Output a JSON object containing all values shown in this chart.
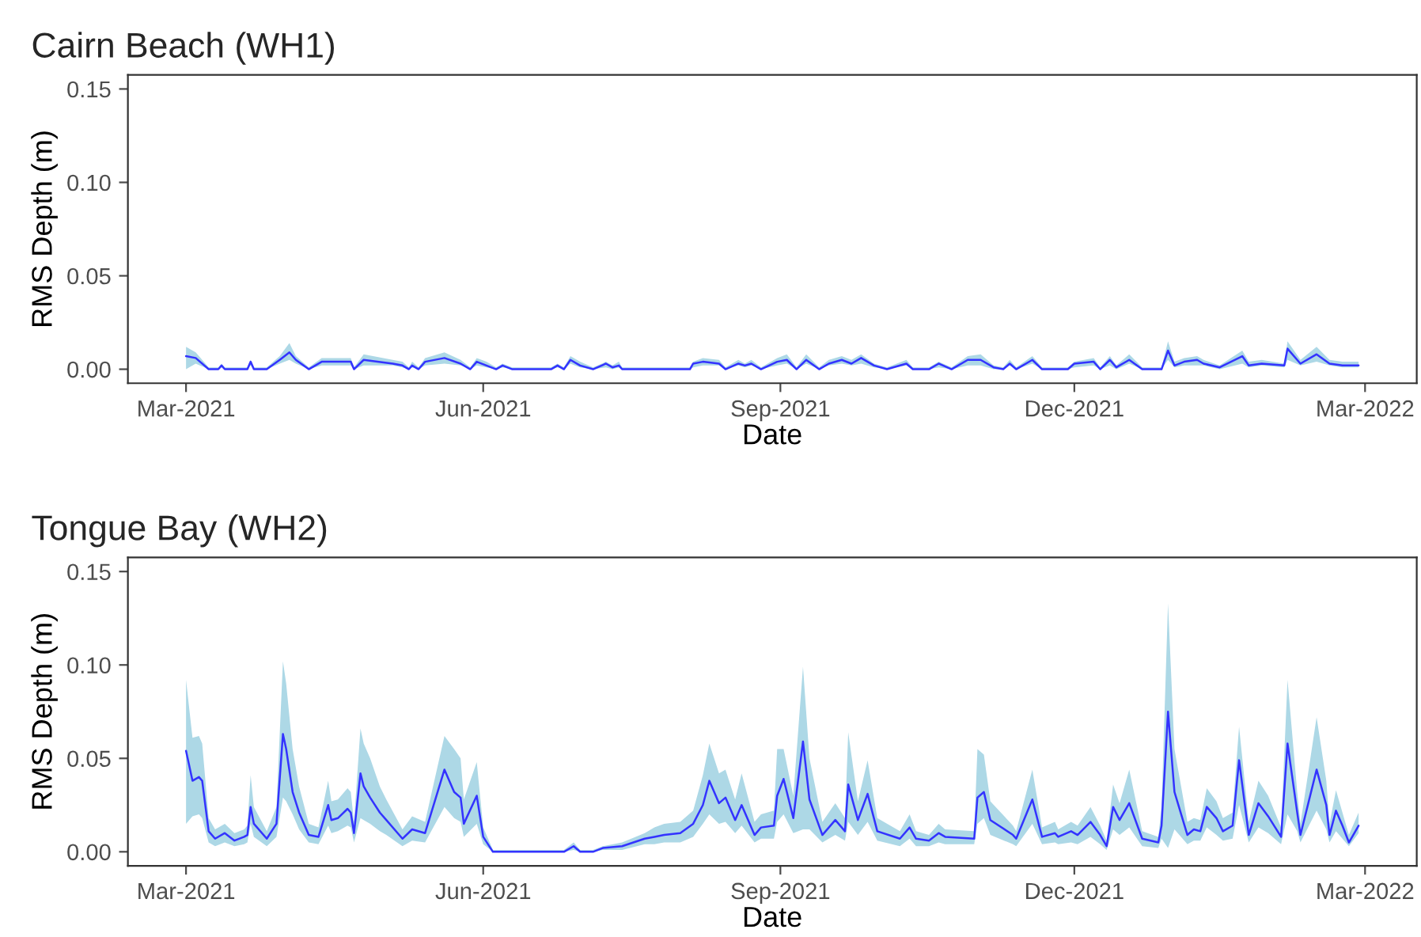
{
  "chart_data": [
    {
      "type": "line",
      "title": "Cairn Beach (WH1)",
      "xlabel": "Date",
      "ylabel": "RMS Depth (m)",
      "xlim": [
        "2021-02-11",
        "2022-03-17"
      ],
      "ylim": [
        -0.0075,
        0.1575
      ],
      "xticks": [
        {
          "value": "2021-03-01",
          "label": "Mar-2021"
        },
        {
          "value": "2021-06-01",
          "label": "Jun-2021"
        },
        {
          "value": "2021-09-01",
          "label": "Sep-2021"
        },
        {
          "value": "2021-12-01",
          "label": "Dec-2021"
        },
        {
          "value": "2022-03-01",
          "label": "Mar-2022"
        }
      ],
      "yticks": [
        {
          "value": 0,
          "label": "0.00"
        },
        {
          "value": 0.05,
          "label": "0.05"
        },
        {
          "value": 0.1,
          "label": "0.10"
        },
        {
          "value": 0.15,
          "label": "0.15"
        }
      ],
      "grid": false,
      "legend": false,
      "series": [
        {
          "color": "#3333ff",
          "x": [
            "2021-03-01",
            "2021-03-04",
            "2021-03-08",
            "2021-03-11",
            "2021-03-12",
            "2021-03-13",
            "2021-03-20",
            "2021-03-21",
            "2021-03-22",
            "2021-03-26",
            "2021-03-30",
            "2021-04-02",
            "2021-04-04",
            "2021-04-08",
            "2021-04-12",
            "2021-04-21",
            "2021-04-22",
            "2021-04-25",
            "2021-05-04",
            "2021-05-07",
            "2021-05-09",
            "2021-05-10",
            "2021-05-12",
            "2021-05-14",
            "2021-05-20",
            "2021-05-25",
            "2021-05-28",
            "2021-05-30",
            "2021-06-02",
            "2021-06-05",
            "2021-06-07",
            "2021-06-10",
            "2021-06-22",
            "2021-06-24",
            "2021-06-26",
            "2021-06-28",
            "2021-07-01",
            "2021-07-05",
            "2021-07-09",
            "2021-07-11",
            "2021-07-13",
            "2021-07-14",
            "2021-08-04",
            "2021-08-05",
            "2021-08-08",
            "2021-08-13",
            "2021-08-15",
            "2021-08-19",
            "2021-08-21",
            "2021-08-23",
            "2021-08-26",
            "2021-08-31",
            "2021-09-03",
            "2021-09-06",
            "2021-09-09",
            "2021-09-13",
            "2021-09-16",
            "2021-09-20",
            "2021-09-23",
            "2021-09-26",
            "2021-09-30",
            "2021-10-04",
            "2021-10-10",
            "2021-10-12",
            "2021-10-17",
            "2021-10-20",
            "2021-10-24",
            "2021-10-29",
            "2021-11-02",
            "2021-11-06",
            "2021-11-09",
            "2021-11-11",
            "2021-11-13",
            "2021-11-18",
            "2021-11-21",
            "2021-11-29",
            "2021-12-01",
            "2021-12-07",
            "2021-12-09",
            "2021-12-12",
            "2021-12-14",
            "2021-12-18",
            "2021-12-22",
            "2021-12-28",
            "2021-12-30",
            "2022-01-01",
            "2022-01-04",
            "2022-01-08",
            "2022-01-10",
            "2022-01-15",
            "2022-01-22",
            "2022-01-24",
            "2022-01-28",
            "2022-02-04",
            "2022-02-05",
            "2022-02-09",
            "2022-02-14",
            "2022-02-18",
            "2022-02-22",
            "2022-02-27"
          ],
          "values": [
            0.007,
            0.006,
            0,
            0,
            0.002,
            0,
            0,
            0.004,
            0,
            0,
            0.005,
            0.009,
            0.005,
            0,
            0.004,
            0.004,
            0,
            0.005,
            0.003,
            0.002,
            0,
            0.002,
            0,
            0.004,
            0.006,
            0.003,
            0,
            0.004,
            0.002,
            0,
            0.002,
            0,
            0,
            0.002,
            0,
            0.005,
            0.002,
            0,
            0.003,
            0.001,
            0.002,
            0,
            0,
            0.003,
            0.004,
            0.003,
            0,
            0.003,
            0.002,
            0.003,
            0,
            0.004,
            0.005,
            0,
            0.005,
            0,
            0.003,
            0.005,
            0.003,
            0.006,
            0.002,
            0,
            0.003,
            0,
            0,
            0.003,
            0,
            0.005,
            0.005,
            0.001,
            0,
            0.003,
            0,
            0.005,
            0,
            0,
            0.003,
            0.004,
            0,
            0.005,
            0.001,
            0.005,
            0,
            0,
            0.01,
            0.002,
            0.004,
            0.005,
            0.003,
            0.001,
            0.007,
            0.002,
            0.003,
            0.002,
            0.011,
            0.003,
            0.008,
            0.003,
            0.002,
            0.002
          ],
          "lower": [
            0,
            0.003,
            0,
            0,
            0.001,
            0,
            0,
            0.002,
            0,
            0,
            0.003,
            0.005,
            0.003,
            0,
            0.002,
            0.002,
            0,
            0.002,
            0.002,
            0.001,
            0,
            0.001,
            0,
            0.002,
            0.003,
            0.002,
            0,
            0.002,
            0.001,
            0,
            0.001,
            0,
            0,
            0.001,
            0,
            0.003,
            0.001,
            0,
            0.001,
            0,
            0.001,
            0,
            0,
            0.001,
            0.002,
            0.002,
            0,
            0.002,
            0.001,
            0.002,
            0,
            0.002,
            0.003,
            0,
            0.003,
            0,
            0.002,
            0.003,
            0.002,
            0.003,
            0.001,
            0,
            0.002,
            0,
            0,
            0.001,
            0,
            0.002,
            0.002,
            0,
            0,
            0.002,
            0,
            0.003,
            0,
            0,
            0.001,
            0.002,
            0,
            0.002,
            0,
            0.003,
            0,
            0,
            0.005,
            0.001,
            0.002,
            0.002,
            0.002,
            0,
            0.003,
            0.001,
            0.002,
            0.001,
            0.005,
            0.002,
            0.004,
            0.002,
            0.001,
            0.001
          ],
          "upper": [
            0.012,
            0.009,
            0.001,
            0.001,
            0.003,
            0.001,
            0.001,
            0.005,
            0.001,
            0.001,
            0.007,
            0.014,
            0.007,
            0.001,
            0.006,
            0.006,
            0.001,
            0.008,
            0.005,
            0.004,
            0.001,
            0.004,
            0.001,
            0.006,
            0.009,
            0.005,
            0.001,
            0.006,
            0.004,
            0.001,
            0.003,
            0.001,
            0.001,
            0.003,
            0.001,
            0.007,
            0.004,
            0.001,
            0.004,
            0.002,
            0.004,
            0.001,
            0.001,
            0.004,
            0.006,
            0.005,
            0.001,
            0.005,
            0.003,
            0.005,
            0.001,
            0.006,
            0.008,
            0.001,
            0.008,
            0.001,
            0.005,
            0.007,
            0.005,
            0.008,
            0.003,
            0.001,
            0.005,
            0.001,
            0.001,
            0.004,
            0.001,
            0.007,
            0.008,
            0.002,
            0.001,
            0.005,
            0.001,
            0.007,
            0.001,
            0.001,
            0.004,
            0.006,
            0.001,
            0.007,
            0.002,
            0.008,
            0.001,
            0.001,
            0.015,
            0.004,
            0.006,
            0.007,
            0.005,
            0.002,
            0.01,
            0.004,
            0.005,
            0.003,
            0.015,
            0.005,
            0.012,
            0.005,
            0.004,
            0.004
          ]
        }
      ]
    },
    {
      "type": "line",
      "title": "Tongue Bay (WH2)",
      "xlabel": "Date",
      "ylabel": "RMS Depth (m)",
      "xlim": [
        "2021-02-11",
        "2022-03-17"
      ],
      "ylim": [
        -0.0075,
        0.1575
      ],
      "xticks": [
        {
          "value": "2021-03-01",
          "label": "Mar-2021"
        },
        {
          "value": "2021-06-01",
          "label": "Jun-2021"
        },
        {
          "value": "2021-09-01",
          "label": "Sep-2021"
        },
        {
          "value": "2021-12-01",
          "label": "Dec-2021"
        },
        {
          "value": "2022-03-01",
          "label": "Mar-2022"
        }
      ],
      "yticks": [
        {
          "value": 0,
          "label": "0.00"
        },
        {
          "value": 0.05,
          "label": "0.05"
        },
        {
          "value": 0.1,
          "label": "0.10"
        },
        {
          "value": 0.15,
          "label": "0.15"
        }
      ],
      "grid": false,
      "legend": false,
      "series": [
        {
          "color": "#3333ff",
          "x": [
            "2021-03-01",
            "2021-03-03",
            "2021-03-05",
            "2021-03-06",
            "2021-03-08",
            "2021-03-10",
            "2021-03-13",
            "2021-03-16",
            "2021-03-19",
            "2021-03-20",
            "2021-03-21",
            "2021-03-22",
            "2021-03-26",
            "2021-03-29",
            "2021-03-31",
            "2021-04-01",
            "2021-04-03",
            "2021-04-05",
            "2021-04-08",
            "2021-04-11",
            "2021-04-14",
            "2021-04-15",
            "2021-04-17",
            "2021-04-20",
            "2021-04-21",
            "2021-04-22",
            "2021-04-24",
            "2021-04-25",
            "2021-04-27",
            "2021-04-30",
            "2021-05-02",
            "2021-05-07",
            "2021-05-10",
            "2021-05-14",
            "2021-05-20",
            "2021-05-23",
            "2021-05-25",
            "2021-05-26",
            "2021-05-30",
            "2021-06-01",
            "2021-06-04",
            "2021-06-26",
            "2021-06-29",
            "2021-07-01",
            "2021-07-05",
            "2021-07-08",
            "2021-07-14",
            "2021-07-21",
            "2021-07-24",
            "2021-07-27",
            "2021-08-01",
            "2021-08-05",
            "2021-08-08",
            "2021-08-10",
            "2021-08-13",
            "2021-08-15",
            "2021-08-18",
            "2021-08-20",
            "2021-08-24",
            "2021-08-26",
            "2021-08-30",
            "2021-08-31",
            "2021-09-02",
            "2021-09-05",
            "2021-09-08",
            "2021-09-10",
            "2021-09-14",
            "2021-09-18",
            "2021-09-21",
            "2021-09-22",
            "2021-09-25",
            "2021-09-28",
            "2021-10-01",
            "2021-10-08",
            "2021-10-11",
            "2021-10-13",
            "2021-10-17",
            "2021-10-20",
            "2021-10-22",
            "2021-10-31",
            "2021-11-01",
            "2021-11-03",
            "2021-11-05",
            "2021-11-12",
            "2021-11-13",
            "2021-11-18",
            "2021-11-21",
            "2021-11-25",
            "2021-11-26",
            "2021-11-30",
            "2021-12-02",
            "2021-12-06",
            "2021-12-09",
            "2021-12-11",
            "2021-12-13",
            "2021-12-15",
            "2021-12-18",
            "2021-12-22",
            "2021-12-27",
            "2021-12-28",
            "2021-12-30",
            "2022-01-01",
            "2022-01-05",
            "2022-01-07",
            "2022-01-09",
            "2022-01-11",
            "2022-01-14",
            "2022-01-16",
            "2022-01-19",
            "2022-01-21",
            "2022-01-24",
            "2022-01-27",
            "2022-01-30",
            "2022-02-03",
            "2022-02-05",
            "2022-02-08",
            "2022-02-09",
            "2022-02-14",
            "2022-02-17",
            "2022-02-18",
            "2022-02-20",
            "2022-02-22",
            "2022-02-24",
            "2022-02-27"
          ],
          "values": [
            0.054,
            0.038,
            0.04,
            0.038,
            0.011,
            0.007,
            0.01,
            0.006,
            0.008,
            0.009,
            0.024,
            0.015,
            0.007,
            0.015,
            0.063,
            0.055,
            0.032,
            0.021,
            0.009,
            0.008,
            0.025,
            0.017,
            0.018,
            0.023,
            0.021,
            0.01,
            0.042,
            0.035,
            0.029,
            0.021,
            0.017,
            0.007,
            0.012,
            0.01,
            0.044,
            0.032,
            0.029,
            0.015,
            0.03,
            0.008,
            0,
            0,
            0.003,
            0,
            0,
            0.002,
            0.003,
            0.007,
            0.008,
            0.009,
            0.01,
            0.015,
            0.025,
            0.038,
            0.026,
            0.029,
            0.017,
            0.025,
            0.009,
            0.013,
            0.014,
            0.03,
            0.039,
            0.018,
            0.059,
            0.028,
            0.009,
            0.017,
            0.011,
            0.036,
            0.017,
            0.031,
            0.011,
            0.007,
            0.013,
            0.007,
            0.006,
            0.01,
            0.008,
            0.007,
            0.029,
            0.032,
            0.017,
            0.009,
            0.007,
            0.028,
            0.008,
            0.01,
            0.008,
            0.011,
            0.009,
            0.016,
            0.009,
            0.003,
            0.024,
            0.017,
            0.026,
            0.007,
            0.005,
            0.014,
            0.075,
            0.032,
            0.009,
            0.012,
            0.011,
            0.024,
            0.018,
            0.011,
            0.014,
            0.049,
            0.009,
            0.026,
            0.019,
            0.008,
            0.058,
            0.021,
            0.009,
            0.044,
            0.025,
            0.009,
            0.022,
            0.014,
            0.005,
            0.014
          ],
          "lower": [
            0.015,
            0.019,
            0.02,
            0.018,
            0.005,
            0.003,
            0.005,
            0.003,
            0.004,
            0.005,
            0.015,
            0.008,
            0.003,
            0.008,
            0.029,
            0.027,
            0.02,
            0.012,
            0.005,
            0.004,
            0.014,
            0.01,
            0.011,
            0.014,
            0.013,
            0.005,
            0.018,
            0.017,
            0.015,
            0.011,
            0.009,
            0.003,
            0.006,
            0.005,
            0.024,
            0.018,
            0.016,
            0.008,
            0.015,
            0.004,
            0,
            0,
            0.001,
            0,
            0,
            0.001,
            0.001,
            0.004,
            0.004,
            0.005,
            0.005,
            0.008,
            0.015,
            0.02,
            0.015,
            0.016,
            0.01,
            0.014,
            0.005,
            0.007,
            0.007,
            0.016,
            0.02,
            0.01,
            0.012,
            0.012,
            0.005,
            0.009,
            0.006,
            0.016,
            0.009,
            0.016,
            0.006,
            0.003,
            0.007,
            0.003,
            0.003,
            0.005,
            0.004,
            0.004,
            0.015,
            0.018,
            0.009,
            0.004,
            0.003,
            0.015,
            0.004,
            0.005,
            0.004,
            0.005,
            0.004,
            0.008,
            0.004,
            0.001,
            0.012,
            0.009,
            0.013,
            0.003,
            0.002,
            0.007,
            0.002,
            0.012,
            0.004,
            0.006,
            0.006,
            0.013,
            0.009,
            0.006,
            0.007,
            0.025,
            0.005,
            0.013,
            0.01,
            0.004,
            0.02,
            0.011,
            0.005,
            0.022,
            0.012,
            0.005,
            0.011,
            0.007,
            0.003,
            0.01
          ],
          "upper": [
            0.092,
            0.061,
            0.062,
            0.058,
            0.018,
            0.012,
            0.015,
            0.01,
            0.012,
            0.014,
            0.041,
            0.024,
            0.011,
            0.024,
            0.102,
            0.09,
            0.055,
            0.035,
            0.015,
            0.013,
            0.038,
            0.027,
            0.028,
            0.034,
            0.032,
            0.016,
            0.066,
            0.058,
            0.05,
            0.035,
            0.028,
            0.012,
            0.019,
            0.016,
            0.062,
            0.055,
            0.05,
            0.028,
            0.048,
            0.013,
            0.001,
            0.001,
            0.005,
            0.001,
            0.001,
            0.003,
            0.005,
            0.01,
            0.013,
            0.015,
            0.016,
            0.022,
            0.041,
            0.058,
            0.042,
            0.044,
            0.028,
            0.042,
            0.016,
            0.02,
            0.022,
            0.055,
            0.055,
            0.03,
            0.099,
            0.05,
            0.016,
            0.026,
            0.018,
            0.064,
            0.027,
            0.049,
            0.018,
            0.011,
            0.02,
            0.011,
            0.009,
            0.015,
            0.012,
            0.011,
            0.055,
            0.052,
            0.027,
            0.014,
            0.011,
            0.044,
            0.013,
            0.016,
            0.012,
            0.016,
            0.014,
            0.024,
            0.014,
            0.006,
            0.036,
            0.026,
            0.044,
            0.011,
            0.008,
            0.024,
            0.133,
            0.055,
            0.016,
            0.018,
            0.017,
            0.034,
            0.027,
            0.018,
            0.021,
            0.067,
            0.016,
            0.038,
            0.03,
            0.013,
            0.092,
            0.032,
            0.015,
            0.072,
            0.038,
            0.015,
            0.033,
            0.021,
            0.009,
            0.021
          ]
        }
      ]
    }
  ]
}
